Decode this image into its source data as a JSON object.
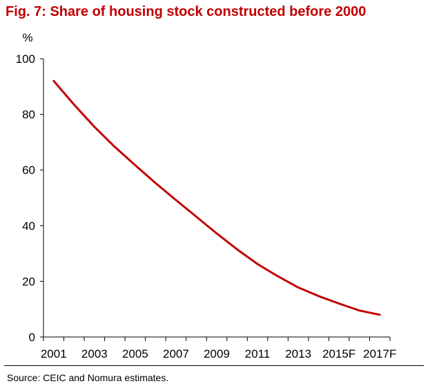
{
  "title": "Fig. 7: Share of housing stock constructed before 2000",
  "source": "Source: CEIC and Nomura estimates.",
  "colors": {
    "title": "#c00000",
    "series": "#c00000",
    "axis": "#000000"
  },
  "chart_data": {
    "type": "line",
    "title": "Fig. 7: Share of housing stock constructed before 2000",
    "ylabel": "%",
    "xlabel": "",
    "ylim": [
      0,
      100
    ],
    "yticks": [
      0,
      20,
      40,
      60,
      80,
      100
    ],
    "ytick_labels": [
      "0",
      "20",
      "40",
      "60",
      "80",
      "100"
    ],
    "x": [
      "2001",
      "2002",
      "2003",
      "2004",
      "2005",
      "2006",
      "2007",
      "2008",
      "2009",
      "2010",
      "2011",
      "2012",
      "2013",
      "2014",
      "2015F",
      "2016F",
      "2017F"
    ],
    "xtick_labels": [
      "2001",
      "2003",
      "2005",
      "2007",
      "2009",
      "2011",
      "2013",
      "2015F",
      "2017F"
    ],
    "grid": false,
    "legend": "none",
    "series": [
      {
        "values": [
          92,
          83.5,
          75.5,
          68.3,
          61.7,
          55.3,
          49.2,
          43.2,
          37.2,
          31.5,
          26.2,
          21.8,
          17.8,
          14.7,
          12,
          9.5,
          8
        ]
      }
    ]
  }
}
